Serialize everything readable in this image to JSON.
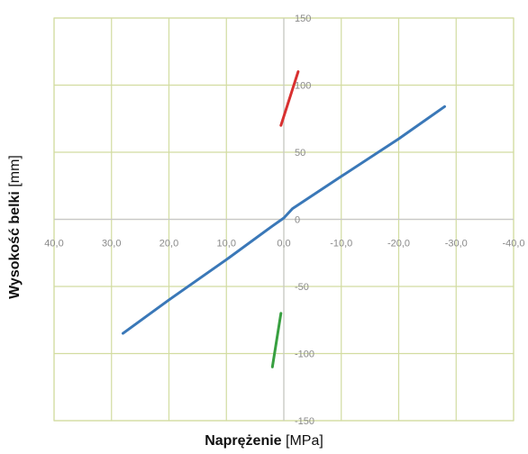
{
  "chart_data": {
    "type": "line",
    "xlabel": {
      "bold": "Naprężenie",
      "unit": "[MPa]"
    },
    "ylabel": {
      "bold": "Wysokość belki",
      "unit": "[mm]"
    },
    "xlim": [
      40,
      -40
    ],
    "ylim": [
      -150,
      150
    ],
    "x_reversed": true,
    "x_ticks": [
      40,
      30,
      20,
      10,
      0,
      -10,
      -20,
      -30,
      -40
    ],
    "x_tick_labels": [
      "40,0",
      "30,0",
      "20,0",
      "10,0",
      "0,0",
      "-10,0",
      "-20,0",
      "-30,0",
      "-40,0"
    ],
    "y_ticks": [
      150,
      100,
      50,
      0,
      -50,
      -100,
      -150
    ],
    "y_tick_labels": [
      "150",
      "100",
      "50",
      "0",
      "-50",
      "-100",
      "-150"
    ],
    "grid": true,
    "legend": "none",
    "colors": {
      "grid": "#d2dca0",
      "axis": "#c8c8c8",
      "frame": "#d2dca0"
    },
    "series": [
      {
        "color": "#3a78b8",
        "x": [
          28.0,
          20.0,
          10.0,
          2.0,
          0.0,
          -1.5,
          -10.0,
          -20.0,
          -28.0
        ],
        "y": [
          -85,
          -60,
          -30,
          -5,
          1,
          8,
          32,
          60,
          84
        ]
      },
      {
        "color": "#d83030",
        "x": [
          0.5,
          -2.5
        ],
        "y": [
          70,
          110
        ]
      },
      {
        "color": "#38a040",
        "x": [
          2.0,
          0.5
        ],
        "y": [
          -110,
          -70
        ]
      }
    ]
  }
}
